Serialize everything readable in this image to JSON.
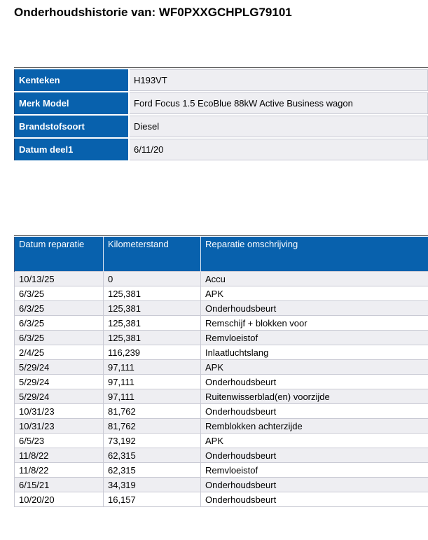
{
  "page": {
    "title": "Onderhoudshistorie van: WF0PXXGCHPLG79101"
  },
  "vehicle_info": {
    "rows": [
      {
        "label": "Kenteken",
        "value": "H193VT"
      },
      {
        "label": "Merk Model",
        "value": "Ford Focus 1.5 EcoBlue 88kW Active Business wagon"
      },
      {
        "label": "Brandstofsoort",
        "value": "Diesel"
      },
      {
        "label": "Datum deel1",
        "value": "6/11/20"
      }
    ]
  },
  "history_table": {
    "columns": [
      "Datum reparatie",
      "Kilometerstand",
      "Reparatie omschrijving"
    ],
    "rows": [
      [
        "10/13/25",
        "0",
        "Accu"
      ],
      [
        "6/3/25",
        "125,381",
        "APK"
      ],
      [
        "6/3/25",
        "125,381",
        "Onderhoudsbeurt"
      ],
      [
        "6/3/25",
        "125,381",
        "Remschijf + blokken voor"
      ],
      [
        "6/3/25",
        "125,381",
        "Remvloeistof"
      ],
      [
        "2/4/25",
        "116,239",
        "Inlaatluchtslang"
      ],
      [
        "5/29/24",
        "97,111",
        "APK"
      ],
      [
        "5/29/24",
        "97,111",
        "Onderhoudsbeurt"
      ],
      [
        "5/29/24",
        "97,111",
        "Ruitenwisserblad(en) voorzijde"
      ],
      [
        "10/31/23",
        "81,762",
        "Onderhoudsbeurt"
      ],
      [
        "10/31/23",
        "81,762",
        "Remblokken achterzijde"
      ],
      [
        "6/5/23",
        "73,192",
        "APK"
      ],
      [
        "11/8/22",
        "62,315",
        "Onderhoudsbeurt"
      ],
      [
        "11/8/22",
        "62,315",
        "Remvloeistof"
      ],
      [
        "6/15/21",
        "34,319",
        "Onderhoudsbeurt"
      ],
      [
        "10/20/20",
        "16,157",
        "Onderhoudsbeurt"
      ]
    ]
  },
  "colors": {
    "header_blue": "#0861AD",
    "row_alt_gray": "#EEEEF2",
    "row_white": "#FFFFFF",
    "grid_border": "#C9CAD4",
    "table_top_line": "#5B5B5B",
    "header_text": "#FFFFFF",
    "body_text": "#000000"
  }
}
